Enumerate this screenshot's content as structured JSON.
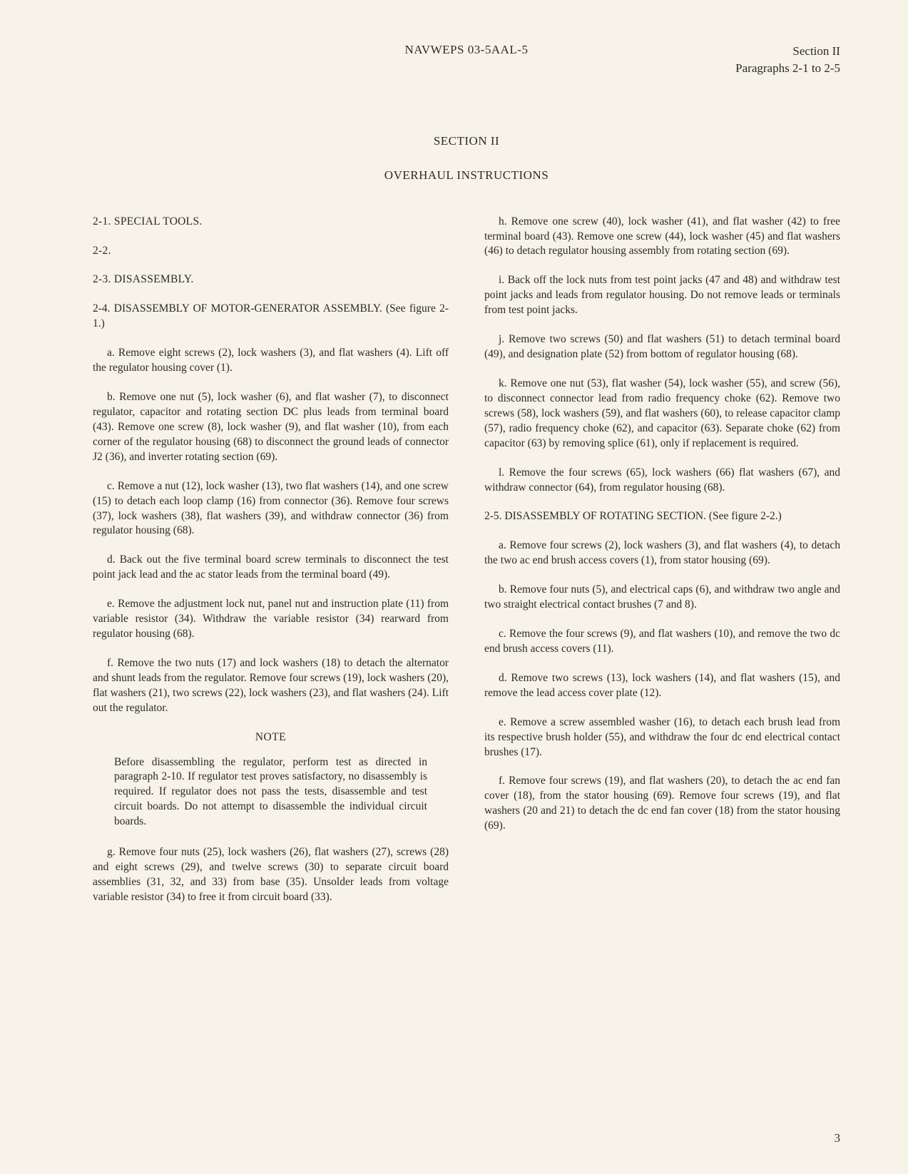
{
  "header": {
    "center": "NAVWEPS 03-5AAL-5",
    "right_line1": "Section II",
    "right_line2": "Paragraphs 2-1 to 2-5"
  },
  "titles": {
    "section": "SECTION II",
    "subsection": "OVERHAUL INSTRUCTIONS"
  },
  "left": {
    "h1": "2-1. SPECIAL TOOLS.",
    "h2": "2-2.",
    "h3": "2-3. DISASSEMBLY.",
    "h4": "2-4. DISASSEMBLY OF MOTOR-GENERATOR ASSEMBLY. (See figure 2-1.)",
    "a": "a. Remove eight screws (2), lock washers (3), and flat washers (4). Lift off the regulator housing cover (1).",
    "b": "b. Remove one nut (5), lock washer (6), and flat washer (7), to disconnect regulator, capacitor and rotating section DC plus leads from terminal board (43). Remove one screw (8), lock washer (9), and flat washer (10), from each corner of the regulator housing (68) to disconnect the ground leads of connector J2 (36), and inverter rotating section (69).",
    "c": "c. Remove a nut (12), lock washer (13), two flat washers (14), and one screw (15) to detach each loop clamp (16) from connector (36). Remove four screws (37), lock washers (38), flat washers (39), and withdraw connector (36) from regulator housing (68).",
    "d": "d. Back out the five terminal board screw terminals to disconnect the test point jack lead and the ac stator leads from the terminal board (49).",
    "e": "e. Remove the adjustment lock nut, panel nut and instruction plate (11) from variable resistor (34). Withdraw the variable resistor (34) rearward from regulator housing (68).",
    "f": "f. Remove the two nuts (17) and lock washers (18) to detach the alternator and shunt leads from the regulator. Remove four screws (19), lock washers (20), flat washers (21), two screws (22), lock washers (23), and flat washers (24). Lift out the regulator.",
    "note_head": "NOTE",
    "note_body": "Before disassembling the regulator, perform test as directed in paragraph 2-10. If regulator test proves satisfactory, no disassembly is required. If regulator does not pass the tests, disassemble and test circuit boards. Do not attempt to disassemble the individual circuit boards.",
    "g": "g. Remove four nuts (25), lock washers (26), flat washers (27), screws (28) and eight screws (29), and twelve screws (30) to separate circuit board assemblies (31, 32, and 33) from base (35). Unsolder leads from voltage variable resistor (34) to free it from circuit board (33)."
  },
  "right": {
    "h": "h. Remove one screw (40), lock washer (41), and flat washer (42) to free terminal board (43). Remove one screw (44), lock washer (45) and flat washers (46) to detach regulator housing assembly from rotating section (69).",
    "i": "i. Back off the lock nuts from test point jacks (47 and 48) and withdraw test point jacks and leads from regulator housing. Do not remove leads or terminals from test point jacks.",
    "j": "j. Remove two screws (50) and flat washers (51) to detach terminal board (49), and designation plate (52) from bottom of regulator housing (68).",
    "k": "k. Remove one nut (53), flat washer (54), lock washer (55), and screw (56), to disconnect connector lead from radio frequency choke (62). Remove two screws (58), lock washers (59), and flat washers (60), to release capacitor clamp (57), radio frequency choke (62), and capacitor (63). Separate choke (62) from capacitor (63) by removing splice (61), only if replacement is required.",
    "l": "l. Remove the four screws (65), lock washers (66) flat washers (67), and withdraw connector (64), from regulator housing (68).",
    "h5": "2-5. DISASSEMBLY OF ROTATING SECTION. (See figure 2-2.)",
    "a": "a. Remove four screws (2), lock washers (3), and flat washers (4), to detach the two ac end brush access covers (1), from stator housing (69).",
    "b": "b. Remove four nuts (5), and electrical caps (6), and withdraw two angle and two straight electrical contact brushes (7 and 8).",
    "c": "c. Remove the four screws (9), and flat washers (10), and remove the two dc end brush access covers (11).",
    "d": "d. Remove two screws (13), lock washers (14), and flat washers (15), and remove the lead access cover plate (12).",
    "e": "e. Remove a screw assembled washer (16), to detach each brush lead from its respective brush holder (55), and withdraw the four dc end electrical contact brushes (17).",
    "f": "f. Remove four screws (19), and flat washers (20), to detach the ac end fan cover (18), from the stator housing (69). Remove four screws (19), and flat washers (20 and 21) to detach the dc end fan cover (18) from the stator housing (69)."
  },
  "page_number": "3"
}
